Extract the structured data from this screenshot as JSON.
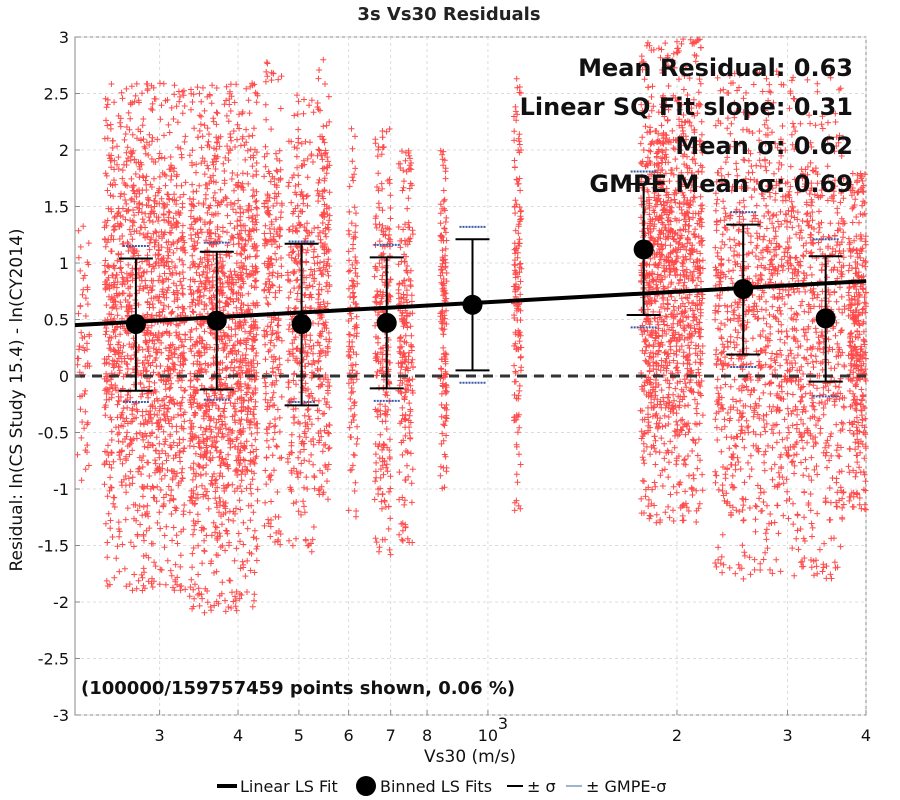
{
  "chart_data": {
    "type": "scatter",
    "title": "3s Vs30 Residuals",
    "xlabel": "Vs30 (m/s)",
    "ylabel": "Residual: ln(CS Study 15.4) - ln(CY2014)",
    "xscale": "log",
    "xlim": [
      220,
      4000
    ],
    "ylim": [
      -3,
      3
    ],
    "grid": true,
    "x_ticks": [
      {
        "value": 300,
        "label": "3"
      },
      {
        "value": 400,
        "label": "4"
      },
      {
        "value": 500,
        "label": "5"
      },
      {
        "value": 600,
        "label": "6"
      },
      {
        "value": 700,
        "label": "7"
      },
      {
        "value": 800,
        "label": "8"
      },
      {
        "value": 1000,
        "label": "10",
        "exponent": "3"
      },
      {
        "value": 2000,
        "label": "2"
      },
      {
        "value": 3000,
        "label": "3"
      },
      {
        "value": 4000,
        "label": "4"
      }
    ],
    "y_ticks": [
      {
        "value": 3,
        "label": "3"
      },
      {
        "value": 2.5,
        "label": "2.5"
      },
      {
        "value": 2,
        "label": "2"
      },
      {
        "value": 1.5,
        "label": "1.5"
      },
      {
        "value": 1,
        "label": "1"
      },
      {
        "value": 0.5,
        "label": "0.5"
      },
      {
        "value": 0,
        "label": "0"
      },
      {
        "value": -0.5,
        "label": "-0.5"
      },
      {
        "value": -1,
        "label": "-1"
      },
      {
        "value": -1.5,
        "label": "-1.5"
      },
      {
        "value": -2,
        "label": "-2"
      },
      {
        "value": -2.5,
        "label": "-2.5"
      },
      {
        "value": -3,
        "label": "-3"
      }
    ],
    "linear_fit": {
      "x": [
        220,
        4000
      ],
      "y": [
        0.45,
        0.84
      ],
      "color": "#000000"
    },
    "zero_line": {
      "y": 0,
      "style": "dashed",
      "color": "#333333"
    },
    "binned_fits": [
      {
        "x": 275,
        "mean": 0.46,
        "sigma_low": -0.13,
        "sigma_high": 1.04,
        "gmpe_low": -0.23,
        "gmpe_high": 1.15
      },
      {
        "x": 370,
        "mean": 0.49,
        "sigma_low": -0.12,
        "sigma_high": 1.1,
        "gmpe_low": -0.21,
        "gmpe_high": 1.18
      },
      {
        "x": 505,
        "mean": 0.46,
        "sigma_low": -0.26,
        "sigma_high": 1.17,
        "gmpe_low": -0.23,
        "gmpe_high": 1.19
      },
      {
        "x": 690,
        "mean": 0.47,
        "sigma_low": -0.11,
        "sigma_high": 1.05,
        "gmpe_low": -0.22,
        "gmpe_high": 1.16
      },
      {
        "x": 945,
        "mean": 0.63,
        "sigma_low": 0.05,
        "sigma_high": 1.21,
        "gmpe_low": -0.06,
        "gmpe_high": 1.32
      },
      {
        "x": 1770,
        "mean": 1.12,
        "sigma_low": 0.54,
        "sigma_high": 1.7,
        "gmpe_low": 0.43,
        "gmpe_high": 1.81
      },
      {
        "x": 2550,
        "mean": 0.77,
        "sigma_low": 0.19,
        "sigma_high": 1.34,
        "gmpe_low": 0.08,
        "gmpe_high": 1.45
      },
      {
        "x": 3450,
        "mean": 0.51,
        "sigma_low": -0.05,
        "sigma_high": 1.06,
        "gmpe_low": -0.18,
        "gmpe_high": 1.21
      }
    ],
    "scatter_clusters": [
      {
        "x_min": 222,
        "x_max": 232,
        "y_min": -1.0,
        "y_max": 1.7,
        "density": 60
      },
      {
        "x_min": 245,
        "x_max": 330,
        "y_min": -1.9,
        "y_max": 2.6,
        "density": 1400
      },
      {
        "x_min": 335,
        "x_max": 430,
        "y_min": -2.1,
        "y_max": 2.6,
        "density": 1400
      },
      {
        "x_min": 440,
        "x_max": 470,
        "y_min": -1.5,
        "y_max": 2.8,
        "density": 250
      },
      {
        "x_min": 480,
        "x_max": 530,
        "y_min": -1.6,
        "y_max": 2.5,
        "density": 350
      },
      {
        "x_min": 535,
        "x_max": 560,
        "y_min": -1.1,
        "y_max": 2.8,
        "density": 220
      },
      {
        "x_min": 600,
        "x_max": 620,
        "y_min": -1.3,
        "y_max": 2.2,
        "density": 120
      },
      {
        "x_min": 660,
        "x_max": 700,
        "y_min": -1.6,
        "y_max": 2.2,
        "density": 250
      },
      {
        "x_min": 720,
        "x_max": 760,
        "y_min": -1.5,
        "y_max": 2.0,
        "density": 220
      },
      {
        "x_min": 840,
        "x_max": 860,
        "y_min": -1.0,
        "y_max": 2.0,
        "density": 150
      },
      {
        "x_min": 1100,
        "x_max": 1130,
        "y_min": -1.2,
        "y_max": 2.7,
        "density": 150
      },
      {
        "x_min": 1750,
        "x_max": 2200,
        "y_min": -1.3,
        "y_max": 3.0,
        "density": 1300
      },
      {
        "x_min": 2300,
        "x_max": 3700,
        "y_min": -1.8,
        "y_max": 2.7,
        "density": 1500
      },
      {
        "x_min": 3750,
        "x_max": 4000,
        "y_min": -1.2,
        "y_max": 1.8,
        "density": 350
      }
    ],
    "annotations": [
      "Mean Residual: 0.63",
      "Linear SQ Fit slope: 0.31",
      "Mean σ: 0.62",
      "GMPE Mean σ: 0.69"
    ],
    "note": "(100000/159757459 points shown, 0.06 %)",
    "legend": {
      "position": "bottom",
      "entries": [
        "Linear LS Fit",
        "Binned LS Fits",
        "± σ",
        "± GMPE-σ"
      ]
    },
    "colors": {
      "scatter": "#ff4a4a",
      "fit": "#000000",
      "sigma": "#000000",
      "gmpe": "#3b5aa8",
      "grid": "#dcdcdc",
      "legend_gmpe": "#9db4cf"
    }
  }
}
